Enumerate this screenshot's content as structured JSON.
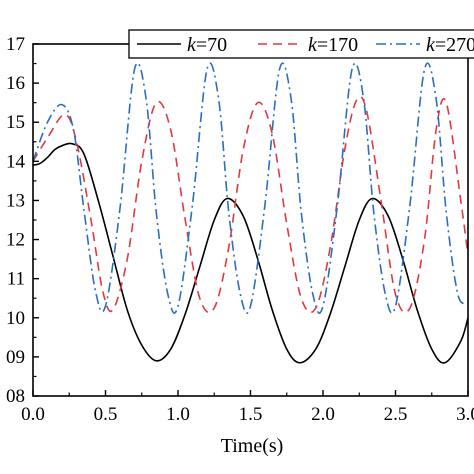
{
  "chart_data": {
    "type": "line",
    "xlabel": "Time(s)",
    "ylabel": "",
    "xlim": [
      0,
      3.0
    ],
    "ylim": [
      8,
      17
    ],
    "xticks": [
      0.0,
      0.5,
      1.0,
      1.5,
      2.0,
      2.5,
      3.0
    ],
    "xtick_labels": [
      "0.0",
      "0.5",
      "1.0",
      "1.5",
      "2.0",
      "2.5",
      "3.0"
    ],
    "yticks": [
      8,
      9,
      10,
      11,
      12,
      13,
      14,
      15,
      16,
      17
    ],
    "ytick_labels": [
      "08",
      "09",
      "10",
      "11",
      "12",
      "13",
      "14",
      "15",
      "16",
      "17"
    ],
    "grid": false,
    "legend_position": "top",
    "series": [
      {
        "name_prefix": "k",
        "name_suffix": "=70",
        "color": "#000000",
        "dash": "solid",
        "x": [
          0.0,
          0.05,
          0.1,
          0.15,
          0.2,
          0.27,
          0.35,
          0.45,
          0.55,
          0.65,
          0.75,
          0.85,
          0.95,
          1.05,
          1.15,
          1.25,
          1.34,
          1.45,
          1.55,
          1.65,
          1.75,
          1.84,
          1.95,
          2.05,
          2.15,
          2.25,
          2.34,
          2.45,
          2.55,
          2.65,
          2.75,
          2.84,
          2.95,
          3.0
        ],
        "y": [
          13.9,
          13.95,
          14.1,
          14.3,
          14.4,
          14.45,
          14.2,
          13.0,
          11.6,
          10.2,
          9.3,
          8.9,
          9.2,
          10.1,
          11.3,
          12.5,
          13.05,
          12.6,
          11.5,
          10.2,
          9.2,
          8.85,
          9.2,
          10.1,
          11.3,
          12.5,
          13.05,
          12.6,
          11.5,
          10.2,
          9.2,
          8.85,
          9.4,
          10.0
        ]
      },
      {
        "name_prefix": "k",
        "name_suffix": "=170",
        "color": "#e0393e",
        "dash": "dashed",
        "x": [
          0.0,
          0.1,
          0.22,
          0.3,
          0.4,
          0.48,
          0.55,
          0.65,
          0.75,
          0.85,
          0.95,
          1.05,
          1.15,
          1.25,
          1.35,
          1.45,
          1.55,
          1.65,
          1.75,
          1.85,
          1.95,
          2.05,
          2.15,
          2.23,
          2.3,
          2.4,
          2.5,
          2.6,
          2.7,
          2.78,
          2.85,
          2.95,
          3.0
        ],
        "y": [
          14.0,
          14.6,
          15.2,
          14.5,
          12.5,
          10.7,
          10.2,
          11.5,
          14.0,
          15.5,
          14.8,
          12.5,
          10.5,
          10.25,
          11.8,
          14.3,
          15.5,
          14.7,
          12.4,
          10.5,
          10.25,
          11.8,
          14.3,
          15.55,
          15.3,
          13.0,
          10.6,
          10.25,
          12.0,
          14.8,
          15.5,
          13.0,
          11.6
        ]
      },
      {
        "name_prefix": "k",
        "name_suffix": "=270",
        "color": "#2a6ec2",
        "dash": "dashdot",
        "x": [
          0.0,
          0.1,
          0.2,
          0.28,
          0.35,
          0.43,
          0.5,
          0.6,
          0.7,
          0.78,
          0.85,
          0.93,
          1.0,
          1.1,
          1.2,
          1.28,
          1.35,
          1.43,
          1.5,
          1.6,
          1.7,
          1.78,
          1.85,
          1.93,
          2.0,
          2.1,
          2.2,
          2.28,
          2.35,
          2.43,
          2.5,
          2.6,
          2.7,
          2.78,
          2.85,
          2.93,
          3.0
        ],
        "y": [
          14.0,
          15.0,
          15.45,
          14.8,
          12.8,
          10.7,
          10.3,
          12.8,
          16.35,
          15.6,
          12.7,
          10.6,
          10.3,
          12.9,
          16.35,
          15.6,
          12.7,
          10.6,
          10.3,
          12.9,
          16.35,
          15.6,
          12.7,
          10.6,
          10.3,
          12.9,
          16.35,
          15.6,
          12.7,
          10.6,
          10.3,
          12.9,
          16.35,
          15.6,
          12.7,
          10.6,
          10.4
        ]
      }
    ]
  }
}
